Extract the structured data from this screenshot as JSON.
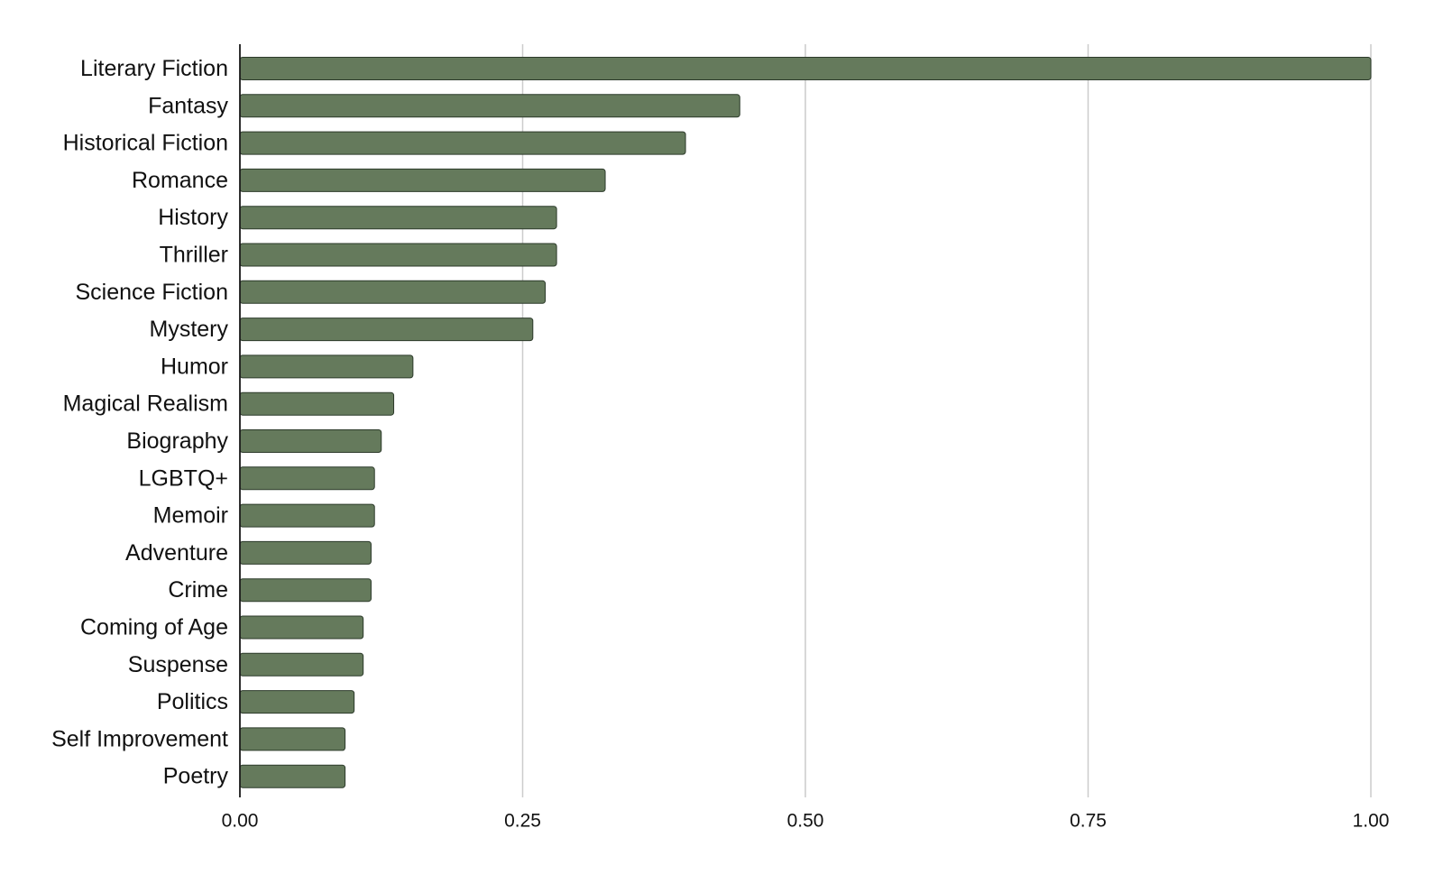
{
  "chart_data": {
    "type": "bar",
    "orientation": "horizontal",
    "categories": [
      "Literary Fiction",
      "Fantasy",
      "Historical Fiction",
      "Romance",
      "History",
      "Thriller",
      "Science Fiction",
      "Mystery",
      "Humor",
      "Magical Realism",
      "Biography",
      "LGBTQ+",
      "Memoir",
      "Adventure",
      "Crime",
      "Coming of Age",
      "Suspense",
      "Politics",
      "Self Improvement",
      "Poetry"
    ],
    "values": [
      1.0,
      0.442,
      0.394,
      0.323,
      0.28,
      0.28,
      0.27,
      0.259,
      0.153,
      0.136,
      0.125,
      0.119,
      0.119,
      0.116,
      0.116,
      0.109,
      0.109,
      0.101,
      0.093,
      0.093
    ],
    "xlim": [
      0,
      1
    ],
    "xticks": [
      "0.00",
      "0.25",
      "0.50",
      "0.75",
      "1.00"
    ],
    "xtick_values": [
      0,
      0.25,
      0.5,
      0.75,
      1.0
    ],
    "title": "",
    "xlabel": "",
    "ylabel": "",
    "grid": "vertical",
    "legend": "none",
    "colors": {
      "bar": "#657a5c",
      "bar_outline": "#2c3a2a",
      "grid": "#cccccc",
      "axis": "#1a1a1a",
      "text": "#111111"
    }
  }
}
